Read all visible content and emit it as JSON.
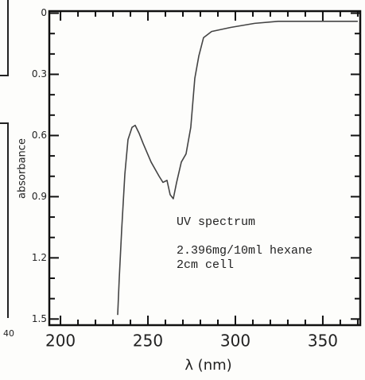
{
  "chart_data": {
    "type": "line",
    "ylabel": "absorbance",
    "xlabel": "λ (nm)",
    "annotations": [
      "UV spectrum",
      "2.396mg/10ml hexane",
      "2cm cell"
    ],
    "fragment_label": "40",
    "x": [
      232.7,
      233.6,
      235,
      236.8,
      238.6,
      240.9,
      242.7,
      245,
      247.3,
      251.8,
      256.4,
      258.6,
      260.9,
      262.7,
      264.5,
      266.4,
      269.1,
      271.8,
      274.5,
      276.8,
      279.1,
      281.8,
      286.4,
      297.3,
      311,
      324.5,
      370
    ],
    "series": [
      {
        "color": "#444444",
        "values": [
          1.48,
          1.3,
          1.06,
          0.79,
          0.62,
          0.56,
          0.55,
          0.59,
          0.64,
          0.73,
          0.8,
          0.83,
          0.82,
          0.89,
          0.91,
          0.83,
          0.73,
          0.69,
          0.56,
          0.32,
          0.21,
          0.12,
          0.09,
          0.07,
          0.05,
          0.04,
          0.04
        ]
      }
    ],
    "xlim": [
      193.6,
      371.4
    ],
    "ylim": [
      -0.01,
      1.53
    ],
    "y_inverted": true,
    "xticks": [
      200,
      250,
      300,
      350
    ],
    "yticks": [
      0,
      0.3,
      0.6,
      0.9,
      1.2,
      1.5
    ],
    "xminorticks": [
      210,
      220,
      230,
      240,
      260,
      270,
      280,
      290,
      310,
      320,
      330,
      340,
      360,
      370
    ],
    "yminorticks": [
      0.1,
      0.2,
      0.4,
      0.5,
      0.7,
      0.8,
      1.0,
      1.1,
      1.3,
      1.4
    ]
  }
}
